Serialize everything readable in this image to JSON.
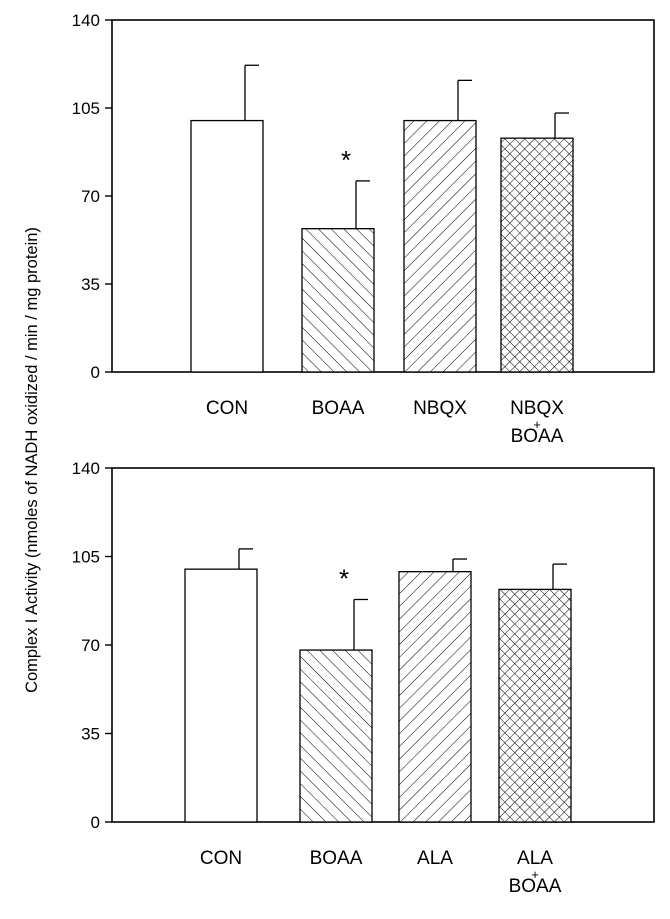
{
  "figure": {
    "ylabel": "Complex I Activity (nmoles of NADH oxidized / min / mg protein)"
  },
  "chart_data": [
    {
      "type": "bar",
      "categories": [
        "CON",
        "BOAA",
        "NBQX",
        "NBQX\nBOAA"
      ],
      "category_lines": [
        [
          "CON"
        ],
        [
          "BOAA"
        ],
        [
          "NBQX"
        ],
        [
          "NBQX",
          "+",
          "BOAA"
        ]
      ],
      "values": [
        100,
        57,
        100,
        93
      ],
      "errors": [
        22,
        19,
        16,
        10
      ],
      "significance": [
        "",
        "*",
        "",
        ""
      ],
      "fill_patterns": [
        "none",
        "hatch-forward",
        "hatch-backward",
        "crosshatch"
      ],
      "yticks": [
        0,
        35,
        70,
        105,
        140
      ],
      "ylim": [
        0,
        140
      ],
      "xlabel": "",
      "title": "",
      "grid": false,
      "legend": "none"
    },
    {
      "type": "bar",
      "categories": [
        "CON",
        "BOAA",
        "ALA",
        "ALA\nBOAA"
      ],
      "category_lines": [
        [
          "CON"
        ],
        [
          "BOAA"
        ],
        [
          "ALA"
        ],
        [
          "ALA",
          "+",
          "BOAA"
        ]
      ],
      "values": [
        100,
        68,
        99,
        92
      ],
      "errors": [
        8,
        20,
        5,
        10
      ],
      "significance": [
        "",
        "*",
        "",
        ""
      ],
      "fill_patterns": [
        "none",
        "hatch-forward",
        "hatch-backward",
        "crosshatch"
      ],
      "yticks": [
        0,
        35,
        70,
        105,
        140
      ],
      "ylim": [
        0,
        140
      ],
      "xlabel": "",
      "title": "",
      "grid": false,
      "legend": "none"
    }
  ]
}
